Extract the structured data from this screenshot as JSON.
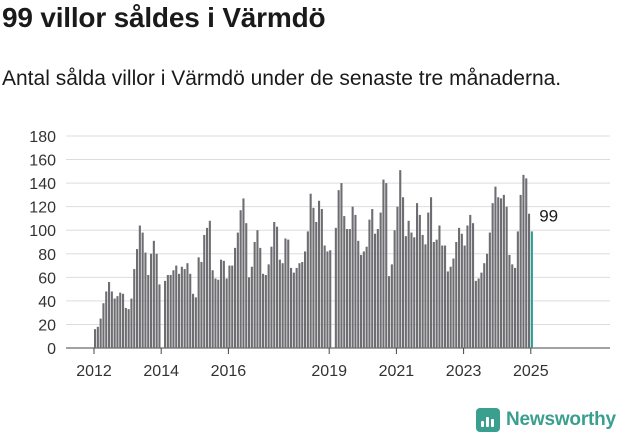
{
  "header": {
    "title": "99 villor såldes i Värmdö",
    "subtitle": "Antal sålda villor i Värmdö under de senaste tre månaderna."
  },
  "brand": {
    "name": "Newsworthy",
    "icon": "newsworthy-logo-icon",
    "color": "#3a9f8f"
  },
  "colors": {
    "bar": "#6e6d72",
    "highlight": "#2a9d94",
    "grid": "#dddddd",
    "axis": "#333333"
  },
  "chart_data": {
    "type": "bar",
    "title": "99 villor såldes i Värmdö",
    "subtitle": "Antal sålda villor i Värmdö under de senaste tre månaderna.",
    "xlabel": "",
    "ylabel": "",
    "ylim": [
      0,
      180
    ],
    "y_ticks": [
      "0",
      "20",
      "40",
      "60",
      "80",
      "100",
      "120",
      "140",
      "160",
      "180"
    ],
    "x_ticks": [
      "2012",
      "2014",
      "2016",
      "2019",
      "2021",
      "2023",
      "2025"
    ],
    "grid": true,
    "legend": "none",
    "start": "2012-01",
    "series": [
      {
        "values": [
          16,
          18,
          25,
          38,
          48,
          56,
          48,
          42,
          44,
          47,
          46,
          34,
          33,
          42,
          67,
          84,
          104,
          98,
          81,
          62,
          80,
          91,
          80,
          54,
          0,
          57,
          62,
          62,
          66,
          70,
          63,
          69,
          67,
          72,
          63,
          46,
          43,
          77,
          73,
          96,
          102,
          108,
          66,
          59,
          58,
          75,
          74,
          59,
          70,
          70,
          85,
          98,
          117,
          127,
          106,
          60,
          69,
          90,
          100,
          85,
          63,
          62,
          71,
          86,
          107,
          103,
          75,
          72,
          93,
          92,
          68,
          64,
          68,
          72,
          73,
          82,
          99,
          131,
          119,
          107,
          125,
          118,
          87,
          82,
          83,
          0,
          102,
          134,
          140,
          112,
          101,
          101,
          120,
          113,
          91,
          79,
          82,
          86,
          109,
          118,
          97,
          101,
          115,
          143,
          140,
          61,
          71,
          100,
          120,
          151,
          128,
          95,
          108,
          98,
          94,
          123,
          113,
          96,
          88,
          115,
          128,
          90,
          92,
          104,
          87,
          87,
          65,
          69,
          76,
          90,
          102,
          97,
          87,
          104,
          113,
          106,
          57,
          59,
          64,
          72,
          80,
          98,
          123,
          137,
          128,
          127,
          130,
          120,
          79,
          71,
          68,
          99,
          130,
          147,
          144,
          114,
          99
        ]
      }
    ],
    "annotations": [
      {
        "text": "99",
        "month": "2025-07",
        "value": 99
      }
    ]
  }
}
